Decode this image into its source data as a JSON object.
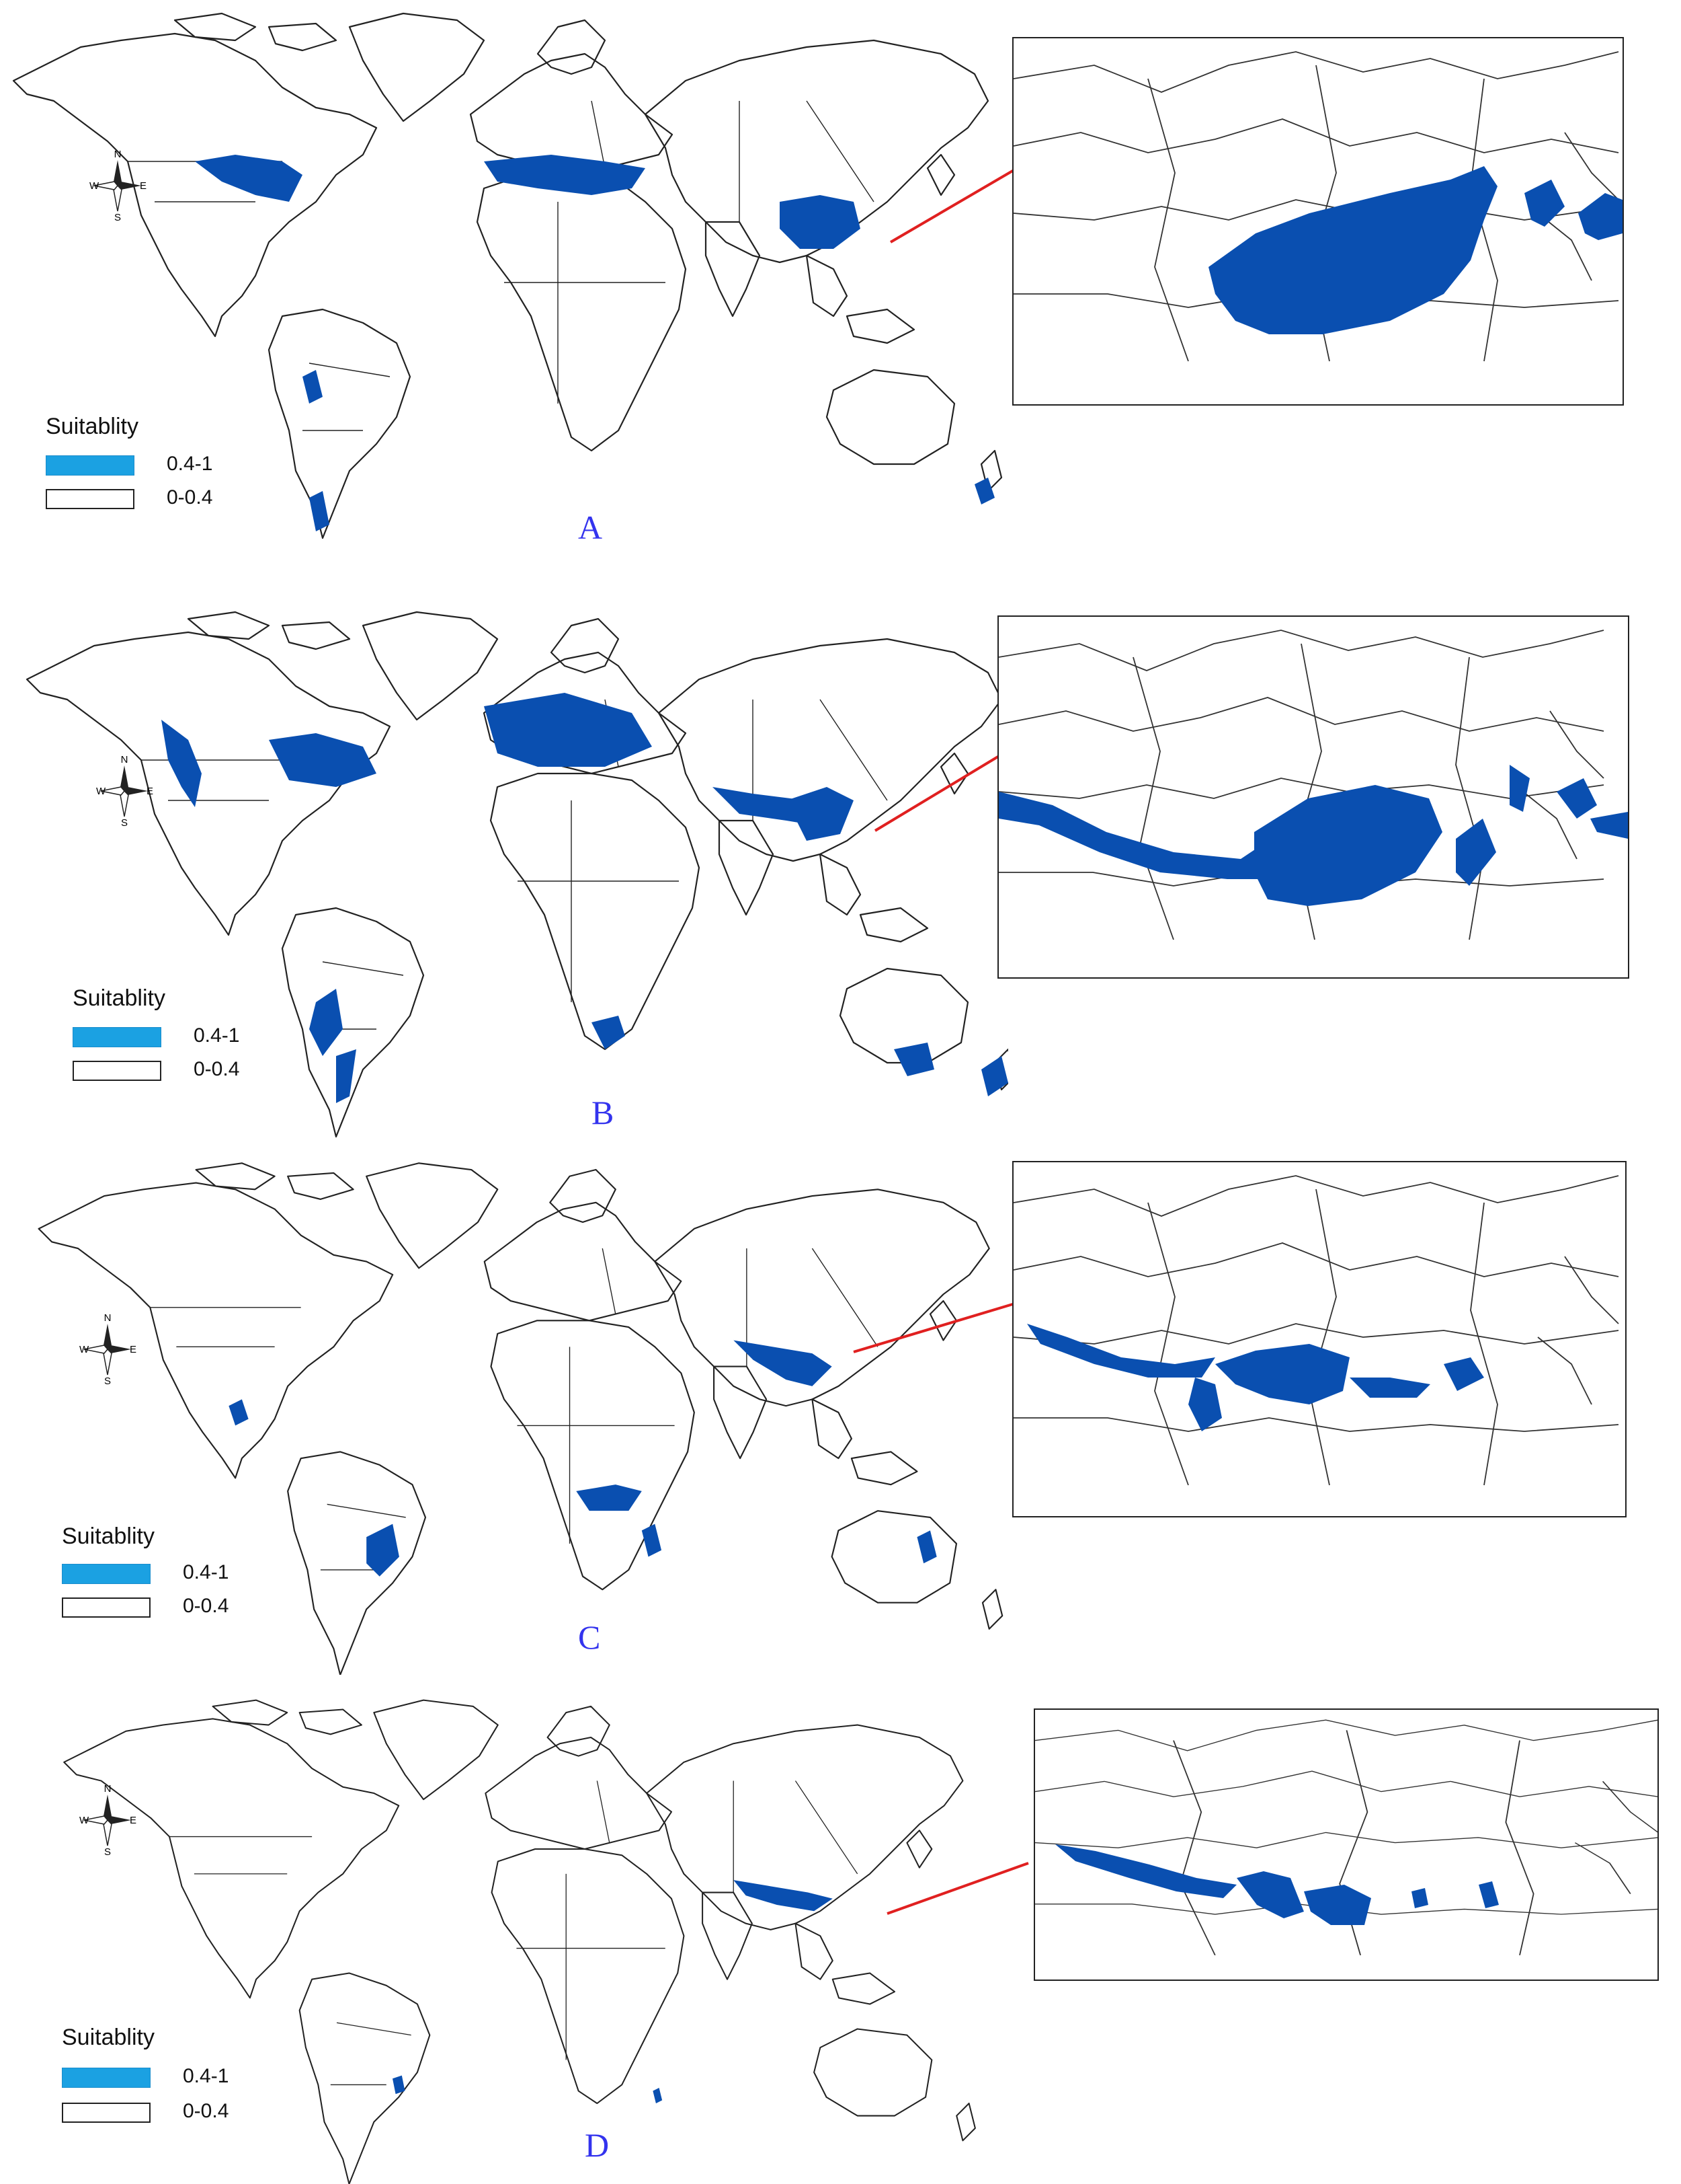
{
  "colors": {
    "suitable_fill": "#0a4fb0",
    "legend_high": "#1ba1e2",
    "border_line": "#222222",
    "leader_line": "#e02020",
    "panel_letter": "#3333ee"
  },
  "compass": {
    "north": "N",
    "south": "S",
    "east": "E",
    "west": "W",
    "icon": "compass-rose-icon"
  },
  "legend": {
    "title": "Suitablity",
    "classes": [
      {
        "label": "0.4-1",
        "color": "#1ba1e2"
      },
      {
        "label": "0-0.4",
        "color": "#ffffff"
      }
    ]
  },
  "panels": [
    {
      "letter": "A"
    },
    {
      "letter": "B"
    },
    {
      "letter": "C"
    },
    {
      "letter": "D"
    }
  ]
}
